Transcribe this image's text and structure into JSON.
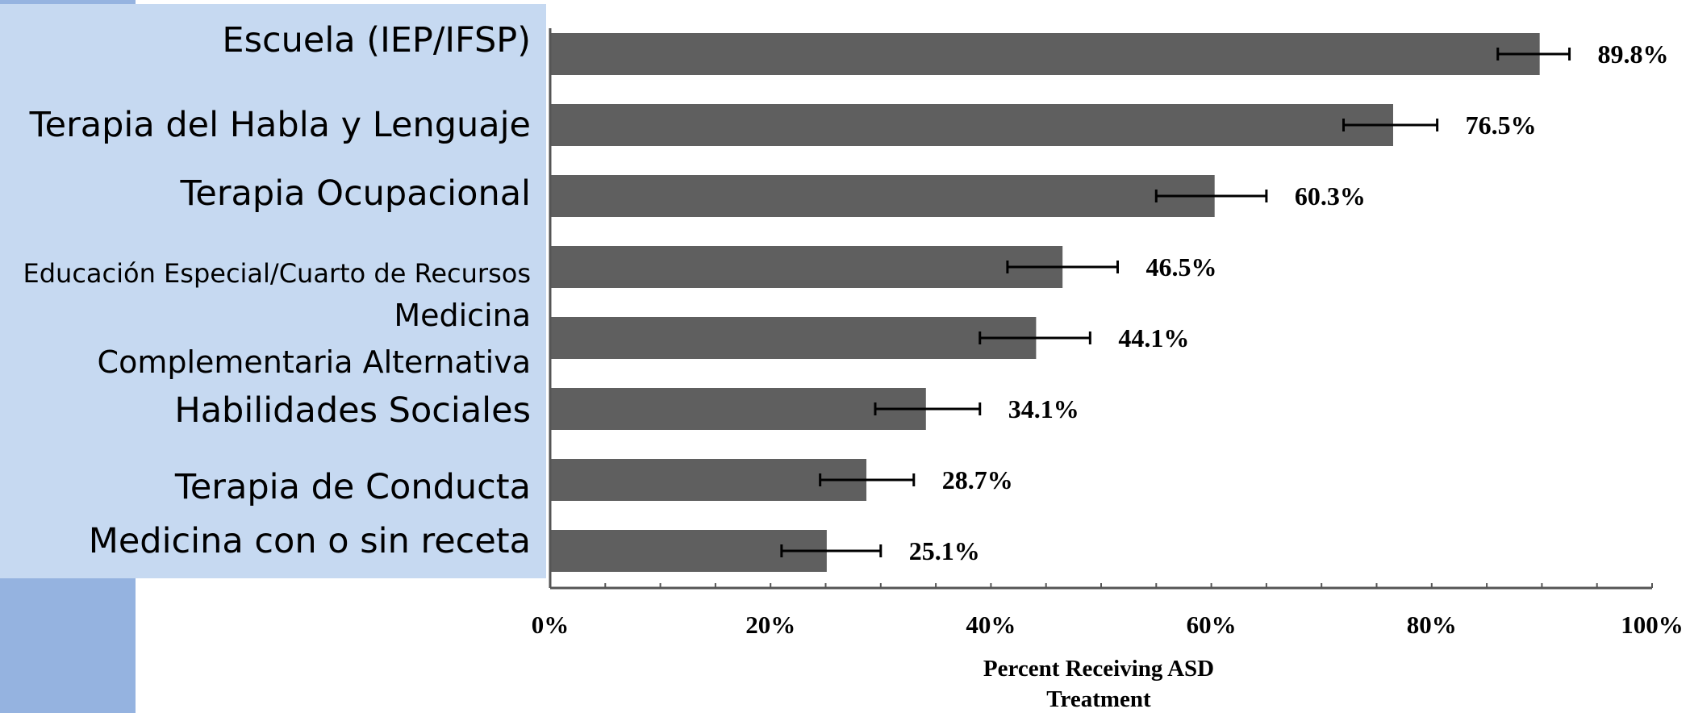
{
  "chart_data": {
    "type": "bar",
    "orientation": "horizontal",
    "categories": [
      "Escuela (IEP/IFSP)",
      "Terapia del Habla y Lenguaje",
      "Terapia Ocupacional",
      "Educación Especial/Cuarto de Recursos",
      "Medicina Complementaria Alternativa",
      "Habilidades Sociales",
      "Terapia de Conducta",
      "Medicina con o sin receta"
    ],
    "values": [
      89.8,
      76.5,
      60.3,
      46.5,
      44.1,
      34.1,
      28.7,
      25.1
    ],
    "value_labels": [
      "89.8%",
      "76.5%",
      "60.3%",
      "46.5%",
      "44.1%",
      "34.1%",
      "28.7%",
      "25.1%"
    ],
    "error_bars": [
      [
        86,
        92.5
      ],
      [
        72,
        80.5
      ],
      [
        55,
        65
      ],
      [
        41.5,
        51.5
      ],
      [
        39,
        49
      ],
      [
        29.5,
        39
      ],
      [
        24.5,
        33
      ],
      [
        21,
        30
      ]
    ],
    "xlim": [
      0,
      100
    ],
    "xticks": [
      "0%",
      "20%",
      "40%",
      "60%",
      "80%",
      "100%"
    ],
    "xlabel": [
      "Percent Receiving ASD",
      "Treatment"
    ],
    "bar_color": "#5f5f5f",
    "grid": false
  },
  "panel": {
    "labels": [
      "Escuela (IEP/IFSP)",
      "Terapia del Habla y Lenguaje",
      "Terapia Ocupacional",
      "Educación Especial/Cuarto de Recursos",
      "Medicina",
      "Complementaria Alternativa",
      "Habilidades Sociales",
      "Terapia de Conducta",
      "Medicina con o sin receta"
    ],
    "panel_color": "#c6d9f1",
    "accent_color": "#95b3e0"
  }
}
